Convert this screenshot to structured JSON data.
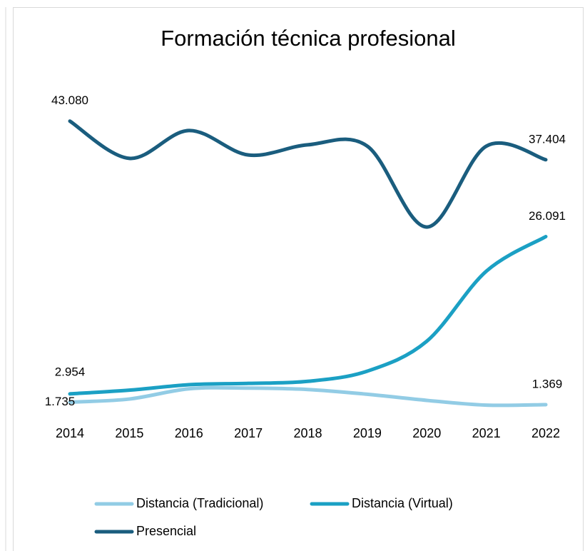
{
  "chart_data": {
    "type": "line",
    "title": "Formación técnica profesional",
    "categories": [
      "2014",
      "2015",
      "2016",
      "2017",
      "2018",
      "2019",
      "2020",
      "2021",
      "2022"
    ],
    "series": [
      {
        "name": "Distancia (Tradicional)",
        "color": "#92cce5",
        "values": [
          1735,
          2200,
          3700,
          3800,
          3600,
          2900,
          2000,
          1300,
          1369
        ],
        "value_labels": [
          "1.735",
          null,
          null,
          null,
          null,
          null,
          null,
          null,
          "1.369"
        ]
      },
      {
        "name": "Distancia (Virtual)",
        "color": "#1ba0c4",
        "values": [
          2954,
          3500,
          4300,
          4500,
          4800,
          6300,
          10700,
          21000,
          26091
        ],
        "value_labels": [
          "2.954",
          null,
          null,
          null,
          null,
          null,
          null,
          null,
          "26.091"
        ]
      },
      {
        "name": "Presencial",
        "color": "#1a5d7e",
        "values": [
          43080,
          37600,
          41700,
          38100,
          39600,
          39400,
          27500,
          39400,
          37404
        ],
        "value_labels": [
          "43.080",
          null,
          null,
          null,
          null,
          null,
          null,
          null,
          "37.404"
        ]
      }
    ],
    "legend": "bottom"
  }
}
